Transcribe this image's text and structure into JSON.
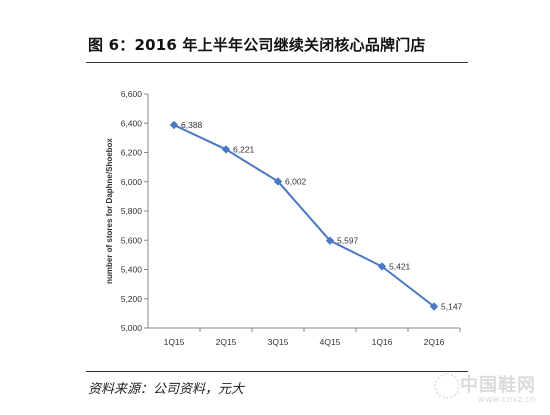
{
  "figure": {
    "title": "图 6：2016 年上半年公司继续关闭核心品牌门店",
    "source": "资料来源：公司资料，元大"
  },
  "watermark": {
    "main": "中国鞋网",
    "sub": "www.cnxz.cn",
    "icon": "shoe-logo-icon"
  },
  "chart_data": {
    "type": "line",
    "title": "",
    "xlabel": "",
    "ylabel": "number of stores for Daphne/Shoebox",
    "categories": [
      "1Q15",
      "2Q15",
      "3Q15",
      "4Q15",
      "1Q16",
      "2Q16"
    ],
    "series": [
      {
        "values": [
          6388,
          6221,
          6002,
          5597,
          5421,
          5147
        ]
      }
    ],
    "data_labels": [
      "6,388",
      "6,221",
      "6,002",
      "5,597",
      "5,421",
      "5,147"
    ],
    "ylim": [
      5000,
      6600
    ],
    "yticks": [
      5000,
      5200,
      5400,
      5600,
      5800,
      6000,
      6200,
      6400,
      6600
    ],
    "ytick_labels": [
      "5,000",
      "5,200",
      "5,400",
      "5,600",
      "5,800",
      "6,000",
      "6,200",
      "6,400",
      "6,600"
    ],
    "grid": false,
    "legend": "none",
    "line_color": "#4a78c4",
    "marker": "diamond"
  }
}
